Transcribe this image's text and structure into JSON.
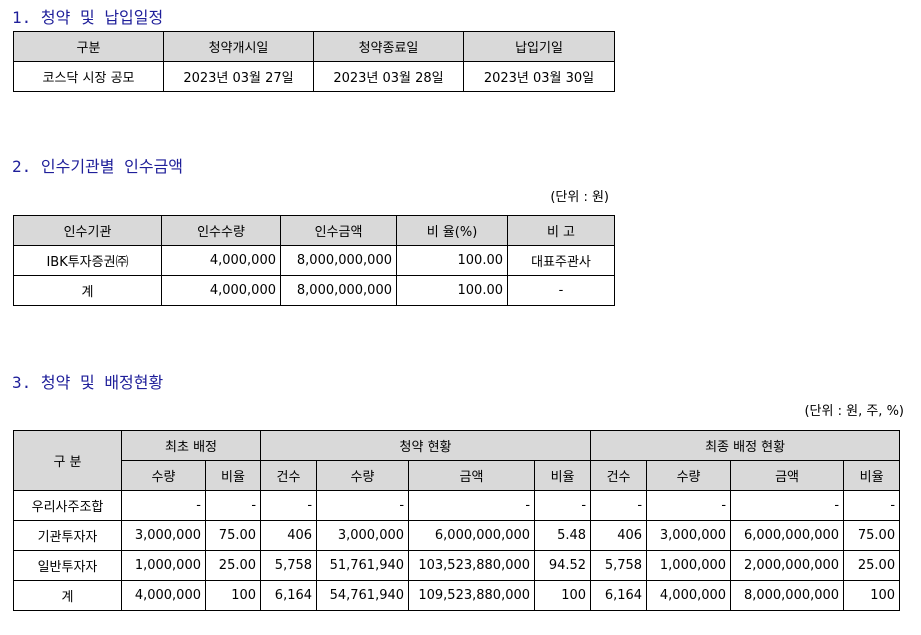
{
  "section1": {
    "title": "1. 청약 및 납입일정",
    "headers": [
      "구분",
      "청약개시일",
      "청약종료일",
      "납입기일"
    ],
    "row": [
      "코스닥 시장 공모",
      "2023년 03월 27일",
      "2023년 03월 28일",
      "2023년 03월 30일"
    ]
  },
  "section2": {
    "title": "2. 인수기관별 인수금액",
    "unit": "(단위 : 원)",
    "headers": [
      "인수기관",
      "인수수량",
      "인수금액",
      "비 율(%)",
      "비 고"
    ],
    "rows": [
      [
        "IBK투자증권㈜",
        "4,000,000",
        "8,000,000,000",
        "100.00",
        "대표주관사"
      ],
      [
        "계",
        "4,000,000",
        "8,000,000,000",
        "100.00",
        "-"
      ]
    ]
  },
  "section3": {
    "title": "3. 청약 및 배정현황",
    "unit": "(단위 : 원, 주, %)",
    "header_category": "구 분",
    "groups": [
      "최초 배정",
      "청약 현황",
      "최종 배정 현황"
    ],
    "subheaders": [
      "수량",
      "비율",
      "건수",
      "수량",
      "금액",
      "비율",
      "건수",
      "수량",
      "금액",
      "비율"
    ],
    "rows": [
      [
        "우리사주조합",
        "-",
        "-",
        "-",
        "-",
        "-",
        "-",
        "-",
        "-",
        "-",
        "-"
      ],
      [
        "기관투자자",
        "3,000,000",
        "75.00",
        "406",
        "3,000,000",
        "6,000,000,000",
        "5.48",
        "406",
        "3,000,000",
        "6,000,000,000",
        "75.00"
      ],
      [
        "일반투자자",
        "1,000,000",
        "25.00",
        "5,758",
        "51,761,940",
        "103,523,880,000",
        "94.52",
        "5,758",
        "1,000,000",
        "2,000,000,000",
        "25.00"
      ],
      [
        "계",
        "4,000,000",
        "100",
        "6,164",
        "54,761,940",
        "109,523,880,000",
        "100",
        "6,164",
        "4,000,000",
        "8,000,000,000",
        "100"
      ]
    ]
  }
}
